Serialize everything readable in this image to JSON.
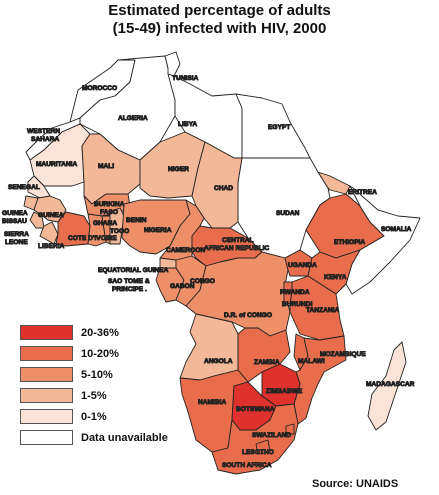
{
  "title_line1": "Estimated percentage of adults",
  "title_line2": "(15-49) infected with HIV, 2000",
  "source": "Source: UNAIDS",
  "colors": {
    "c20_36": "#e0322d",
    "c10_20": "#e86d4c",
    "c5_10": "#ed8f68",
    "c1_5": "#f3b897",
    "c0_1": "#fbe4d7",
    "na": "#ffffff",
    "border": "#222222"
  },
  "legend": [
    {
      "label": "20-36%",
      "color": "#e0322d"
    },
    {
      "label": "10-20%",
      "color": "#e86d4c"
    },
    {
      "label": "5-10%",
      "color": "#ed8f68"
    },
    {
      "label": "1-5%",
      "color": "#f3b897"
    },
    {
      "label": "0-1%",
      "color": "#fbe4d7"
    },
    {
      "label": "Data unavailable",
      "color": "#ffffff"
    }
  ],
  "countries": {
    "tunisia": "TUNISIA",
    "morocco": "MOROCCO",
    "algeria": "ALGERIA",
    "libya": "LIBYA",
    "egypt": "EGYPT",
    "western_sahara_1": "WESTERN",
    "western_sahara_2": "SAHARA",
    "mauritania": "MAURITANIA",
    "mali": "MALI",
    "niger": "NIGER",
    "chad": "CHAD",
    "sudan": "SUDAN",
    "eritrea": "ERITREA",
    "senegal": "SENEGAL",
    "guinea_bissau_1": "GUINEA",
    "guinea_bissau_2": "BISSAU",
    "guinea": "GUINEA",
    "sierra_leone_1": "SIERRA",
    "sierra_leone_2": "LEONE",
    "liberia": "LIBERIA",
    "burkina_1": "BURKINA",
    "burkina_2": "FASO",
    "ghana": "GHANA",
    "togo": "TOGO",
    "benin": "BENIN",
    "nigeria": "NIGERIA",
    "cote_divoire": "COTE D'IVOIRE",
    "cameroon": "CAMEROON",
    "car_1": "CENTRAL",
    "car_2": "AFRICAN REPUBLIC",
    "ethiopia": "ETHIOPIA",
    "somalia": "SOMALIA",
    "uganda": "UGANDA",
    "kenya": "KENYA",
    "rwanda": "RWANDA",
    "burundi": "BURUNDI",
    "tanzania": "TANZANIA",
    "eq_guinea": "EQUATORIAL GUINEA",
    "sao_tome_1": "SAO TOME &",
    "sao_tome_2": "PRINCIPE .",
    "gabon": "GABON",
    "congo": "CONGO",
    "drc": "D.R. of CONGO",
    "angola": "ANGOLA",
    "zambia": "ZAMBIA",
    "malawi": "MALAWI",
    "mozambique": "MOZAMBIQUE",
    "zimbabwe": "ZIMBABWE",
    "namibia": "NAMIBIA",
    "botswana": "BOTSWANA",
    "swaziland": "SWAZILAND",
    "lesotho": "LESOTHO",
    "south_africa": "SOUTH AFRICA",
    "madagascar": "MADAGASCAR"
  }
}
